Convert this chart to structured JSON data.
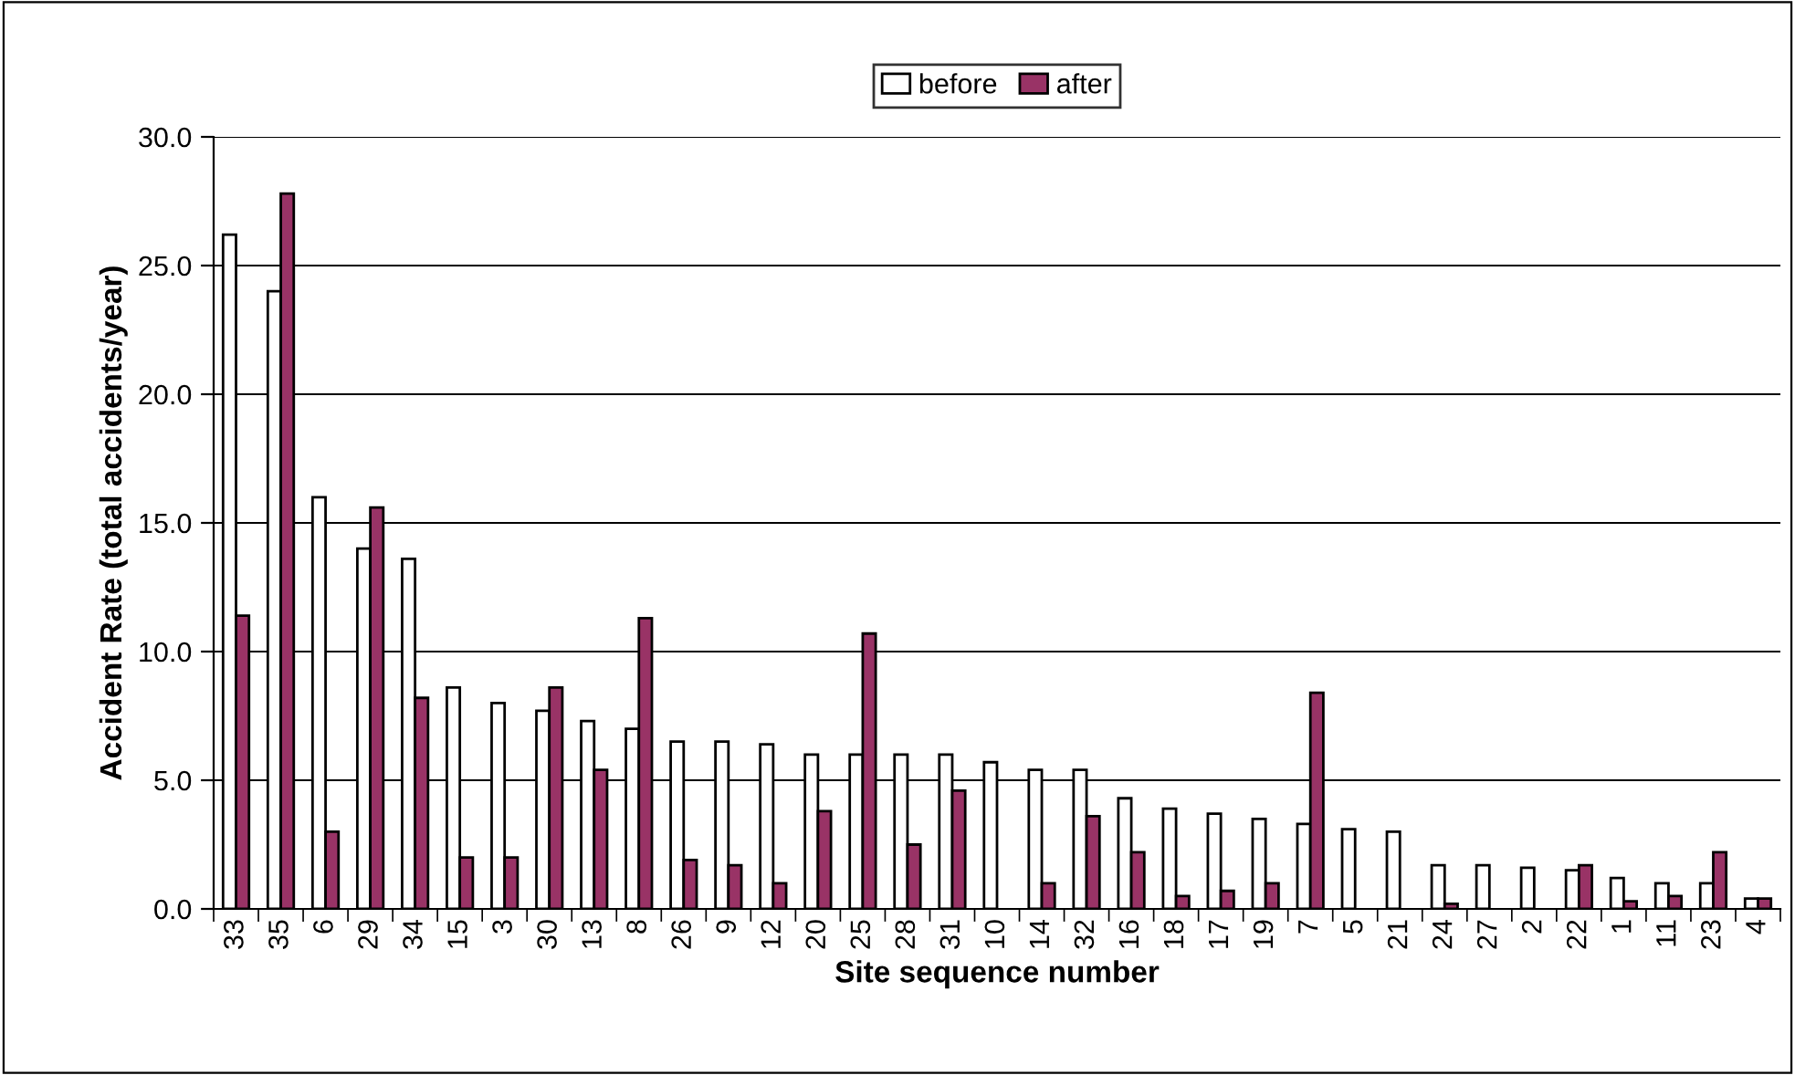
{
  "chart_data": {
    "type": "bar",
    "xlabel": "Site sequence number",
    "ylabel": "Accident Rate (total accidents/year)",
    "categories": [
      "33",
      "35",
      "6",
      "29",
      "34",
      "15",
      "3",
      "30",
      "13",
      "8",
      "26",
      "9",
      "12",
      "20",
      "25",
      "28",
      "31",
      "10",
      "14",
      "32",
      "16",
      "18",
      "17",
      "19",
      "7",
      "5",
      "21",
      "24",
      "27",
      "2",
      "22",
      "1",
      "11",
      "23",
      "4"
    ],
    "series": [
      {
        "name": "before",
        "color": "#ffffff",
        "values": [
          26.2,
          24.0,
          16.0,
          14.0,
          13.6,
          8.6,
          8.0,
          7.7,
          7.3,
          7.0,
          6.5,
          6.5,
          6.4,
          6.0,
          6.0,
          6.0,
          6.0,
          5.7,
          5.4,
          5.4,
          4.3,
          3.9,
          3.7,
          3.5,
          3.3,
          3.1,
          3.0,
          1.7,
          1.7,
          1.6,
          1.5,
          1.2,
          1.0,
          1.0,
          0.4
        ]
      },
      {
        "name": "after",
        "color": "#993366",
        "values": [
          11.4,
          27.8,
          3.0,
          15.6,
          8.2,
          2.0,
          2.0,
          8.6,
          5.4,
          11.3,
          1.9,
          1.7,
          1.0,
          3.8,
          10.7,
          2.5,
          4.6,
          0,
          1.0,
          3.6,
          2.2,
          0.5,
          0.7,
          1.0,
          8.4,
          0,
          0,
          0.2,
          0,
          0,
          1.7,
          0.3,
          0.5,
          2.2,
          0.4
        ]
      }
    ],
    "ylim": [
      0,
      30
    ],
    "yticks": [
      {
        "value": 0,
        "label": "0.0"
      },
      {
        "value": 5,
        "label": "5.0"
      },
      {
        "value": 10,
        "label": "10.0"
      },
      {
        "value": 15,
        "label": "15.0"
      },
      {
        "value": 20,
        "label": "20.0"
      },
      {
        "value": 25,
        "label": "25.0"
      },
      {
        "value": 30,
        "label": "30.0"
      }
    ],
    "grid": "y",
    "legend": "top"
  }
}
